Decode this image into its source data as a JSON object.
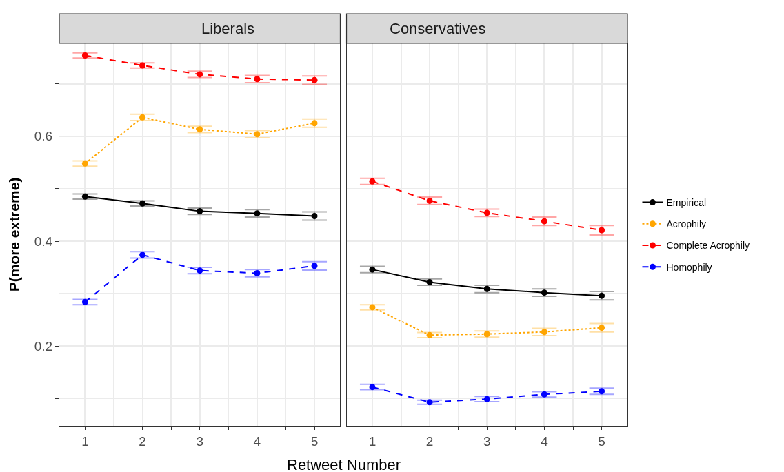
{
  "chart_data": [
    {
      "type": "line",
      "title": "Liberals",
      "xlabel": "Retweet Number",
      "ylabel": "P(more extreme)",
      "x": [
        1,
        2,
        3,
        4,
        5
      ],
      "xlim": [
        0.55,
        5.45
      ],
      "xticks": [
        1,
        {
          "value": 1.5,
          "label": null
        },
        2,
        {
          "value": 2.5,
          "label": null
        },
        3,
        {
          "value": 3.5,
          "label": null
        },
        4,
        {
          "value": 4.5,
          "label": null
        },
        5
      ],
      "ylim": [
        0.048,
        0.777
      ],
      "yticks": [
        {
          "value": 0.1,
          "label": null
        },
        0.2,
        {
          "value": 0.3,
          "label": null
        },
        0.4,
        {
          "value": 0.5,
          "label": null
        },
        0.6,
        {
          "value": 0.7,
          "label": null
        }
      ],
      "grid": true,
      "legend": "right",
      "marker": "circle",
      "series": [
        {
          "name": "Empirical",
          "color": "#000000",
          "line_style": "solid",
          "values": [
            0.485,
            0.472,
            0.457,
            0.453,
            0.448
          ],
          "errors": [
            0.005,
            0.005,
            0.006,
            0.007,
            0.008
          ]
        },
        {
          "name": "Acrophily",
          "color": "#ffa500",
          "line_style": "dotted",
          "values": [
            0.548,
            0.636,
            0.613,
            0.604,
            0.625
          ],
          "errors": [
            0.005,
            0.006,
            0.006,
            0.007,
            0.008
          ]
        },
        {
          "name": "Complete Acrophily",
          "color": "#ff0000",
          "line_style": "dashed",
          "values": [
            0.754,
            0.735,
            0.718,
            0.709,
            0.707
          ],
          "errors": [
            0.005,
            0.005,
            0.006,
            0.007,
            0.008
          ]
        },
        {
          "name": "Homophily",
          "color": "#0000ff",
          "line_style": "dashed",
          "values": [
            0.284,
            0.374,
            0.344,
            0.339,
            0.353
          ],
          "errors": [
            0.005,
            0.006,
            0.006,
            0.007,
            0.008
          ]
        }
      ]
    },
    {
      "type": "line",
      "title": "Conservatives",
      "x": [
        1,
        2,
        3,
        4,
        5
      ],
      "xlim": [
        0.55,
        5.45
      ],
      "xticks": [
        1,
        {
          "value": 1.5,
          "label": null
        },
        2,
        {
          "value": 2.5,
          "label": null
        },
        3,
        {
          "value": 3.5,
          "label": null
        },
        4,
        {
          "value": 4.5,
          "label": null
        },
        5
      ],
      "ylim": [
        0.048,
        0.777
      ],
      "yticks": [
        {
          "value": 0.1,
          "label": null
        },
        0.2,
        {
          "value": 0.3,
          "label": null
        },
        0.4,
        {
          "value": 0.5,
          "label": null
        },
        0.6,
        {
          "value": 0.7,
          "label": null
        }
      ],
      "grid": true,
      "marker": "circle",
      "tick_labels": "x",
      "series": [
        {
          "color": "#000000",
          "line_style": "solid",
          "values": [
            0.346,
            0.322,
            0.309,
            0.302,
            0.296
          ],
          "errors": [
            0.006,
            0.006,
            0.007,
            0.007,
            0.008
          ]
        },
        {
          "color": "#ffa500",
          "line_style": "dotted",
          "values": [
            0.274,
            0.221,
            0.223,
            0.227,
            0.235
          ],
          "errors": [
            0.005,
            0.005,
            0.006,
            0.007,
            0.008
          ]
        },
        {
          "color": "#ff0000",
          "line_style": "dashed",
          "values": [
            0.514,
            0.477,
            0.454,
            0.438,
            0.421
          ],
          "errors": [
            0.006,
            0.007,
            0.007,
            0.008,
            0.009
          ]
        },
        {
          "color": "#0000ff",
          "line_style": "dashed",
          "values": [
            0.122,
            0.093,
            0.099,
            0.108,
            0.114
          ],
          "errors": [
            0.005,
            0.004,
            0.005,
            0.005,
            0.006
          ]
        }
      ]
    }
  ]
}
